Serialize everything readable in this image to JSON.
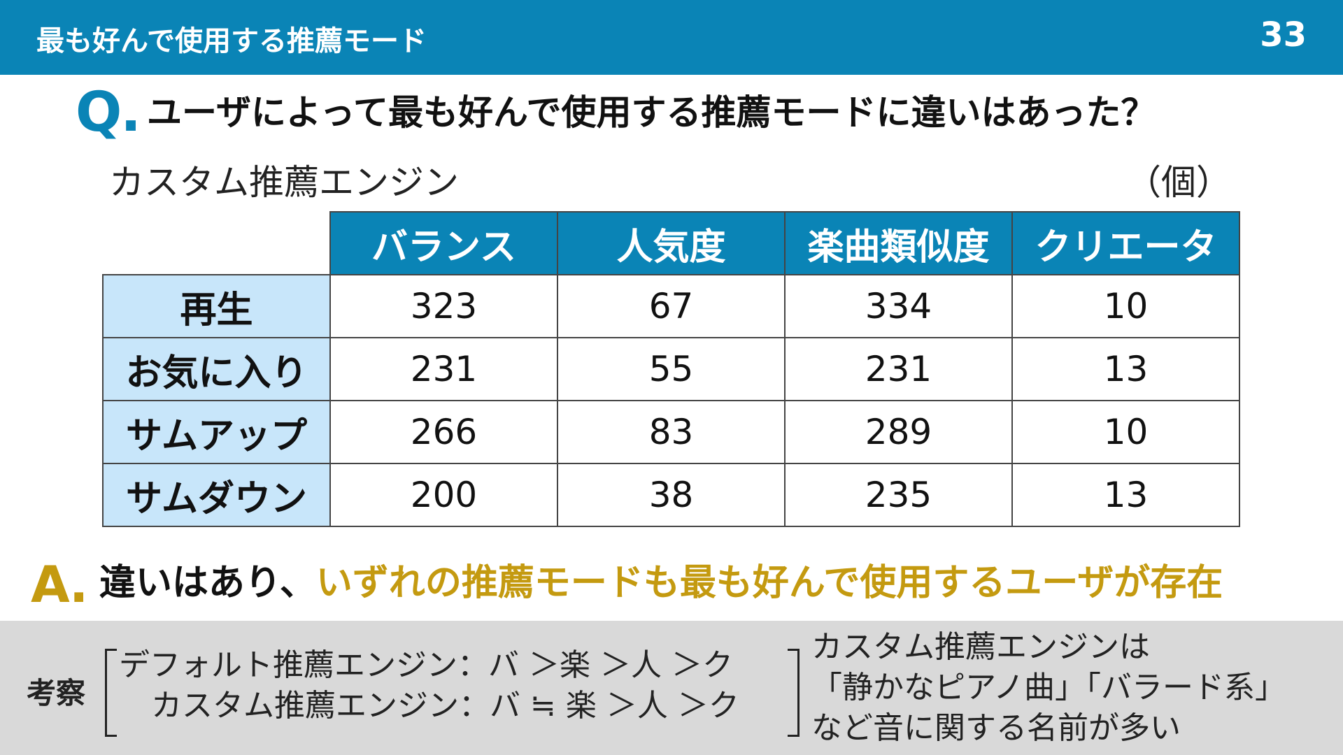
{
  "header": {
    "title": "最も好んで使用する推薦モード",
    "page_number": "33"
  },
  "question": {
    "mark": "Q.",
    "text": "ユーザによって最も好んで使用する推薦モードに違いはあった？"
  },
  "table": {
    "caption": "カスタム推薦エンジン",
    "unit": "（個）",
    "columns": [
      "バランス",
      "人気度",
      "楽曲類似度",
      "クリエータ"
    ],
    "rows": [
      {
        "label": "再生",
        "values": [
          "323",
          "67",
          "334",
          "10"
        ]
      },
      {
        "label": "お気に入り",
        "values": [
          "231",
          "55",
          "231",
          "13"
        ]
      },
      {
        "label": "サムアップ",
        "values": [
          "266",
          "83",
          "289",
          "10"
        ]
      },
      {
        "label": "サムダウン",
        "values": [
          "200",
          "38",
          "235",
          "13"
        ]
      }
    ]
  },
  "answer": {
    "mark": "A.",
    "lead": "違いはあり、",
    "emphasis": "いずれの推薦モードも最も好んで使用するユーザが存在"
  },
  "discussion": {
    "label": "考察",
    "orders": [
      "デフォルト推薦エンジン：バ ＞楽 ＞人 ＞ク",
      "カスタム推薦エンジン：バ ≒ 楽 ＞人 ＞ク"
    ],
    "notes": [
      "カスタム推薦エンジンは",
      "「静かなピアノ曲」「バラード系」",
      "など音に関する名前が多い"
    ]
  },
  "colors": {
    "primary": "#0a84b6",
    "accent": "#c49a10",
    "row_header_bg": "#c8e6fa",
    "discussion_bg": "#d9d9d9"
  }
}
